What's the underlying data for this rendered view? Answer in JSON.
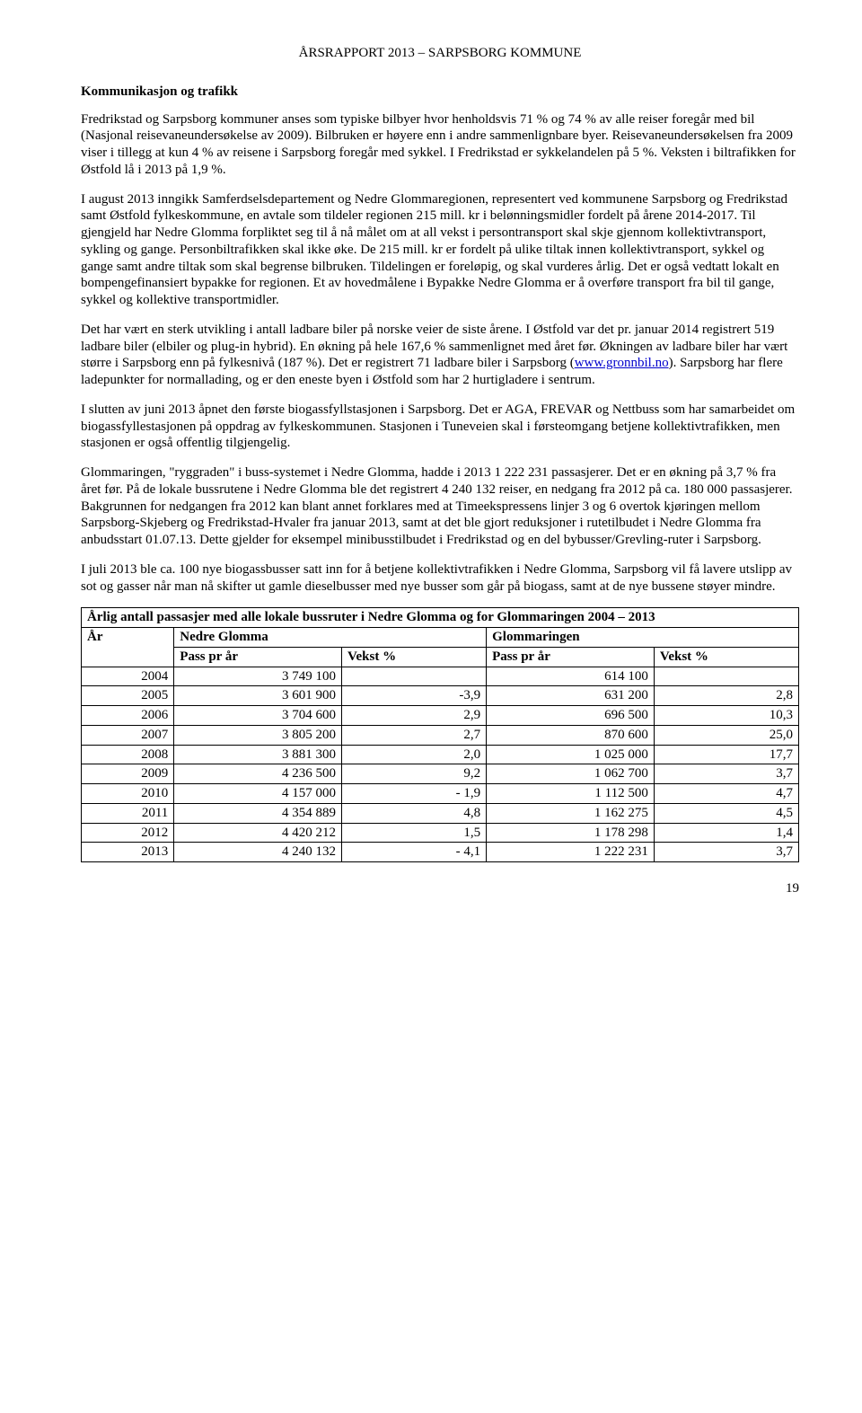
{
  "header": "ÅRSRAPPORT 2013 – SARPSBORG KOMMUNE",
  "section_title": "Kommunikasjon og trafikk",
  "p1": "Fredrikstad og Sarpsborg kommuner anses som typiske bilbyer hvor henholdsvis 71 % og 74 % av alle reiser foregår med bil (Nasjonal reisevaneundersøkelse av 2009). Bilbruken er høyere enn i andre sammenlignbare byer. Reisevaneundersøkelsen fra 2009 viser i tillegg at kun 4 % av reisene i Sarpsborg foregår med sykkel. I Fredrikstad er sykkelandelen på 5 %. Veksten i biltrafikken for Østfold lå i 2013 på 1,9 %.",
  "p2": "I august 2013 inngikk Samferdselsdepartement og Nedre Glommaregionen, representert ved kommunene Sarpsborg og Fredrikstad samt Østfold fylkeskommune, en avtale som tildeler regionen 215 mill. kr i belønningsmidler fordelt på årene 2014-2017. Til gjengjeld har Nedre Glomma forpliktet seg til å nå målet om at all vekst i persontransport skal skje gjennom kollektivtransport, sykling og gange. Personbiltrafikken skal ikke øke. De 215 mill. kr er fordelt på ulike tiltak innen kollektivtransport, sykkel og gange samt andre tiltak som skal begrense bilbruken. Tildelingen er foreløpig, og skal vurderes årlig. Det er også vedtatt lokalt en bompengefinansiert bypakke for regionen. Et av hovedmålene i Bypakke Nedre Glomma er å overføre transport fra bil til gange, sykkel og kollektive transportmidler.",
  "p3a": "Det har vært en sterk utvikling i antall ladbare biler på norske veier de siste årene. I Østfold var det pr. januar 2014 registrert 519 ladbare biler (elbiler og plug-in hybrid). En økning på hele 167,6 % sammenlignet med året før. Økningen av ladbare biler har vært større i Sarpsborg enn på fylkesnivå (187 %). Det er registrert 71 ladbare biler i Sarpsborg (",
  "p3_link_text": "www.gronnbil.no",
  "p3b": "). Sarpsborg har flere ladepunkter for normallading, og er den eneste byen i Østfold som har 2 hurtigladere i sentrum.",
  "p4": "I slutten av juni 2013 åpnet den første biogassfyllstasjonen i Sarpsborg. Det er AGA, FREVAR og Nettbuss som har samarbeidet om biogassfyllestasjonen på oppdrag av fylkeskommunen. Stasjonen i Tuneveien skal i førsteomgang betjene kollektivtrafikken, men stasjonen er også offentlig tilgjengelig.",
  "p5": "Glommaringen, \"ryggraden\" i buss-systemet i Nedre Glomma, hadde i 2013 1 222 231 passasjerer. Det er en økning på 3,7 % fra året før.  På de lokale bussrutene i Nedre Glomma ble det registrert 4 240 132 reiser, en nedgang fra 2012 på ca. 180 000 passasjerer. Bakgrunnen for nedgangen fra 2012 kan blant annet forklares med at Timeekspressens linjer 3 og 6 overtok kjøringen mellom Sarpsborg-Skjeberg og Fredrikstad-Hvaler fra januar 2013, samt at det ble gjort reduksjoner i rutetilbudet i Nedre Glomma fra anbudsstart 01.07.13. Dette gjelder for eksempel minibusstilbudet i Fredrikstad og en del bybusser/Grevling-ruter i Sarpsborg.",
  "p6": "I juli 2013 ble ca. 100 nye biogassbusser satt inn for å betjene kollektivtrafikken i Nedre Glomma, Sarpsborg vil få lavere utslipp av sot og gasser når man nå skifter ut gamle dieselbusser med nye busser som går på biogass, samt at de nye bussene støyer mindre.",
  "table": {
    "title": "Årlig antall passasjer med alle lokale bussruter i Nedre Glomma og for Glommaringen 2004 – 2013",
    "col_year": "År",
    "col_group1": "Nedre Glomma",
    "col_group2": "Glommaringen",
    "col_pass": "Pass pr år",
    "col_growth": "Vekst %",
    "rows": [
      {
        "year": "2004",
        "p1": "3 749 100",
        "g1": "",
        "p2": "614 100",
        "g2": ""
      },
      {
        "year": "2005",
        "p1": "3 601 900",
        "g1": "-3,9",
        "p2": "631 200",
        "g2": "2,8"
      },
      {
        "year": "2006",
        "p1": "3 704 600",
        "g1": "2,9",
        "p2": "696 500",
        "g2": "10,3"
      },
      {
        "year": "2007",
        "p1": "3 805 200",
        "g1": "2,7",
        "p2": "870 600",
        "g2": "25,0"
      },
      {
        "year": "2008",
        "p1": "3 881 300",
        "g1": "2,0",
        "p2": "1 025 000",
        "g2": "17,7"
      },
      {
        "year": "2009",
        "p1": "4 236 500",
        "g1": "9,2",
        "p2": "1 062 700",
        "g2": "3,7"
      },
      {
        "year": "2010",
        "p1": "4 157 000",
        "g1": "- 1,9",
        "p2": "1 112 500",
        "g2": "4,7"
      },
      {
        "year": "2011",
        "p1": "4 354 889",
        "g1": "4,8",
        "p2": "1 162 275",
        "g2": "4,5"
      },
      {
        "year": "2012",
        "p1": "4 420 212",
        "g1": "1,5",
        "p2": "1 178 298",
        "g2": "1,4"
      },
      {
        "year": "2013",
        "p1": "4 240 132",
        "g1": "- 4,1",
        "p2": "1 222 231",
        "g2": "3,7"
      }
    ]
  },
  "page_number": "19"
}
